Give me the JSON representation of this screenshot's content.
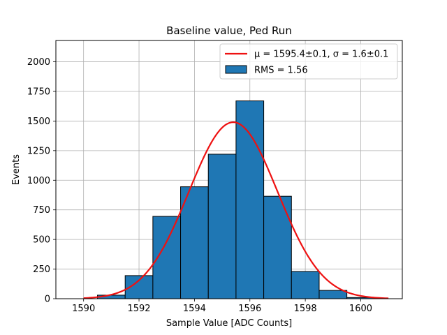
{
  "chart_data": {
    "type": "bar",
    "title": "Baseline value, Ped Run",
    "xlabel": "Sample Value [ADC Counts]",
    "ylabel": "Events",
    "xlim": [
      1589,
      1601.5
    ],
    "ylim": [
      0,
      2180
    ],
    "xticks": [
      1590,
      1592,
      1594,
      1596,
      1598,
      1600
    ],
    "yticks": [
      0,
      250,
      500,
      750,
      1000,
      1250,
      1500,
      1750,
      2000
    ],
    "grid": true,
    "legend_position": "top-right",
    "histogram": {
      "name": "RMS = 1.56",
      "color": "#1f77b4",
      "edgecolor": "#000000",
      "bins": [
        {
          "x0": 1589.5,
          "x1": 1590.5,
          "count": 0
        },
        {
          "x0": 1590.5,
          "x1": 1591.5,
          "count": 30
        },
        {
          "x0": 1591.5,
          "x1": 1592.5,
          "count": 195
        },
        {
          "x0": 1592.5,
          "x1": 1593.5,
          "count": 695
        },
        {
          "x0": 1593.5,
          "x1": 1594.5,
          "count": 945
        },
        {
          "x0": 1594.5,
          "x1": 1595.5,
          "count": 1220
        },
        {
          "x0": 1595.5,
          "x1": 1596.5,
          "count": 1670
        },
        {
          "x0": 1596.5,
          "x1": 1597.5,
          "count": 865
        },
        {
          "x0": 1597.5,
          "x1": 1598.5,
          "count": 230
        },
        {
          "x0": 1598.5,
          "x1": 1599.5,
          "count": 70
        },
        {
          "x0": 1599.5,
          "x1": 1600.5,
          "count": 10
        }
      ]
    },
    "fit": {
      "name": "μ = 1595.4±0.1, σ = 1.6±0.1",
      "color": "#ee1111",
      "mu": 1595.4,
      "sigma": 1.6,
      "amplitude": 1490,
      "x_range": [
        1590,
        1601
      ]
    }
  }
}
